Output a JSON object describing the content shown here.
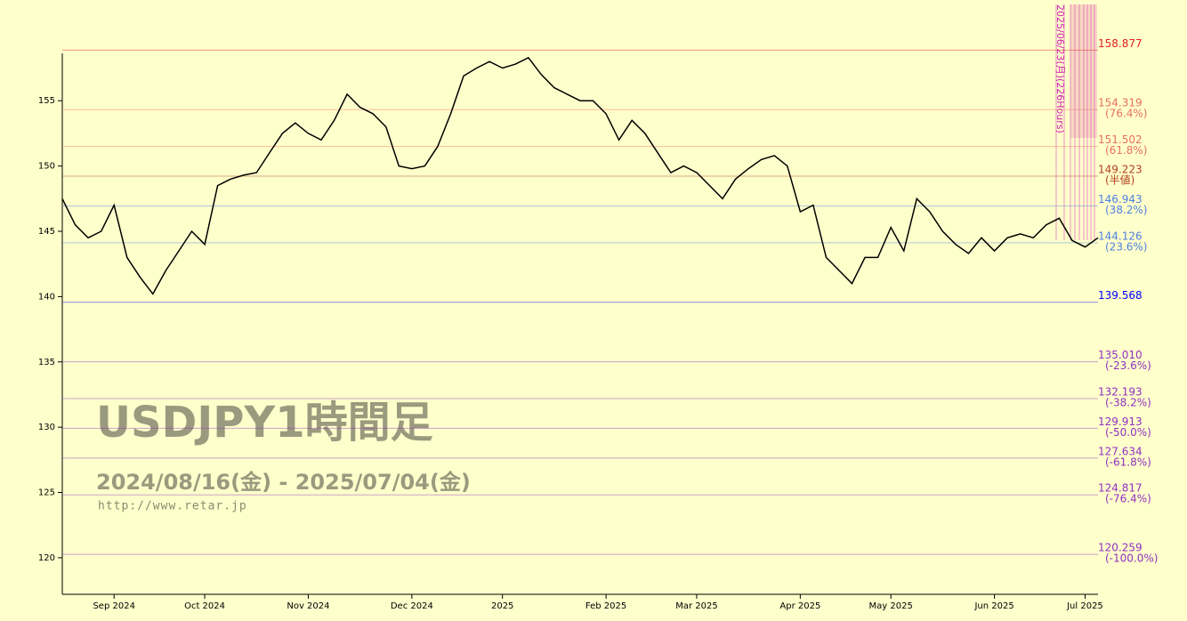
{
  "chart_data": {
    "type": "line",
    "title": "USDJPY1時間足",
    "subtitle": "2024/08/16(金) - 2025/07/04(金)",
    "source": "http://www.retar.jp",
    "annotation": "2025/06/23(月)(226Hours)",
    "categories": [
      null,
      null,
      null,
      null,
      "Sep 2024",
      null,
      null,
      null,
      null,
      null,
      null,
      "Oct 2024",
      null,
      null,
      null,
      null,
      null,
      null,
      null,
      "Nov 2024",
      null,
      null,
      null,
      null,
      null,
      null,
      null,
      "Dec 2024",
      null,
      null,
      null,
      null,
      null,
      null,
      "2025",
      null,
      null,
      null,
      null,
      null,
      null,
      null,
      "Feb 2025",
      null,
      null,
      null,
      null,
      null,
      null,
      "Mar 2025",
      null,
      null,
      null,
      null,
      null,
      null,
      null,
      "Apr 2025",
      null,
      null,
      null,
      null,
      null,
      null,
      "May 2025",
      null,
      null,
      null,
      null,
      null,
      null,
      null,
      "Jun 2025",
      null,
      null,
      null,
      null,
      null,
      null,
      "Jul 2025",
      null
    ],
    "series": [
      {
        "name": "USDJPY",
        "color": "#000000",
        "values": [
          147.5,
          145.5,
          144.5,
          145,
          147,
          143,
          141.5,
          140.2,
          142,
          143.5,
          145,
          144,
          148.5,
          149,
          149.3,
          149.5,
          151,
          152.5,
          153.3,
          152.5,
          152,
          153.5,
          155.5,
          154.5,
          154,
          153,
          150,
          149.8,
          150,
          151.5,
          154,
          156.9,
          157.5,
          158,
          157.5,
          157.8,
          158.3,
          157,
          156,
          155.5,
          155,
          155,
          154,
          152,
          153.5,
          152.5,
          151,
          149.5,
          150,
          149.5,
          148.5,
          147.5,
          149,
          149.8,
          150.5,
          150.8,
          150,
          146.5,
          147,
          143,
          142,
          141,
          143,
          143,
          145.3,
          143.5,
          147.5,
          146.5,
          145,
          144,
          143.3,
          144.5,
          143.5,
          144.5,
          144.8,
          144.5,
          145.5,
          146,
          144.3,
          143.8,
          144.5
        ]
      }
    ],
    "levels": [
      {
        "value": 158.877,
        "label": "158.877",
        "color": "#e02020"
      },
      {
        "value": 154.319,
        "label": "154.319",
        "ratio": "(76.4%)",
        "color": "#e87060"
      },
      {
        "value": 151.502,
        "label": "151.502",
        "ratio": "(61.8%)",
        "color": "#e87060"
      },
      {
        "value": 149.223,
        "label": "149.223",
        "ratio": "(半値)",
        "color": "#b04020"
      },
      {
        "value": 146.943,
        "label": "146.943",
        "ratio": "(38.2%)",
        "color": "#5080e0"
      },
      {
        "value": 144.126,
        "label": "144.126",
        "ratio": "(23.6%)",
        "color": "#5080e0"
      },
      {
        "value": 139.568,
        "label": "139.568",
        "color": "#0000ff"
      },
      {
        "value": 135.01,
        "label": "135.010",
        "ratio": "(-23.6%)",
        "color": "#9030c0"
      },
      {
        "value": 132.193,
        "label": "132.193",
        "ratio": "(-38.2%)",
        "color": "#9030c0"
      },
      {
        "value": 129.913,
        "label": "129.913",
        "ratio": "(-50.0%)",
        "color": "#9030c0"
      },
      {
        "value": 127.634,
        "label": "127.634",
        "ratio": "(-61.8%)",
        "color": "#9030c0"
      },
      {
        "value": 124.817,
        "label": "124.817",
        "ratio": "(-76.4%)",
        "color": "#9030c0"
      },
      {
        "value": 120.259,
        "label": "120.259",
        "ratio": "(-100.0%)",
        "color": "#9030c0"
      }
    ],
    "ylim": [
      117.2,
      158.9
    ],
    "yticks": [
      120,
      125,
      130,
      135,
      140,
      145,
      150,
      155
    ]
  }
}
